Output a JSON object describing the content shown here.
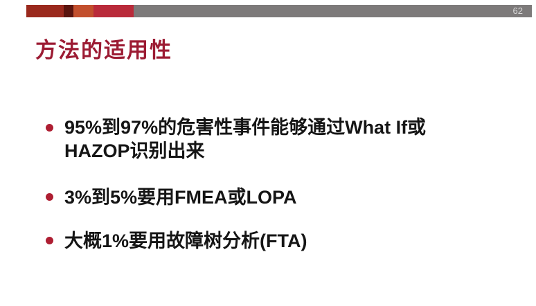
{
  "slide": {
    "page_number": "62",
    "title": "方法的适用性",
    "bullets": [
      {
        "text": "95%到97%的危害性事件能够通过What If或\nHAZOP识别出来"
      },
      {
        "text": "3%到5%要用FMEA或LOPA"
      },
      {
        "text": "大概1%要用故障树分析(FTA)"
      }
    ],
    "colors": {
      "bar_segment_1": "#9a291d",
      "bar_segment_2": "#5a140e",
      "bar_segment_3": "#c24f2d",
      "bar_segment_4": "#b92a3a",
      "bar_gray": "#7d7a7a",
      "page_number_text": "#d9d9d9",
      "title_text": "#9c1b33",
      "bullet_dot": "#ae1e32",
      "body_text": "#151515",
      "background": "#ffffff"
    }
  }
}
